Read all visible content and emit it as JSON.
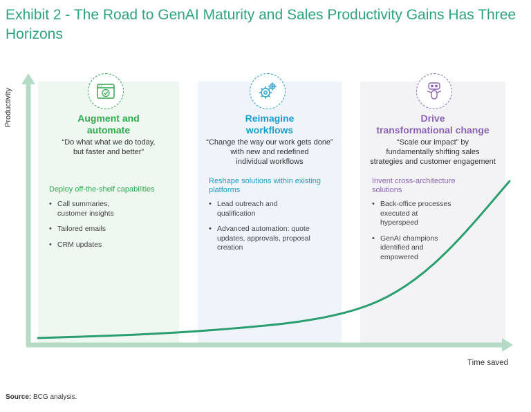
{
  "title": "Exhibit 2 - The Road to GenAI Maturity and Sales Productivity Gains Has Three Horizons",
  "axes": {
    "y_label": "Productivity",
    "x_label": "Time saved"
  },
  "horizons": [
    {
      "title_line1": "Augment and",
      "title_line2": "automate",
      "quote_line1": "“Do what what we do today,",
      "quote_line2": "but faster and better”",
      "quote_line3": "",
      "sub_line1": "Deploy off-the-shelf capabilities",
      "sub_line2": "",
      "bullets": [
        "Call summaries, customer insights",
        "Tailored emails",
        "CRM updates"
      ],
      "color": "#2fa84f",
      "icon": "browser-check-icon"
    },
    {
      "title_line1": "Reimagine",
      "title_line2": "workflows",
      "quote_line1": "“Change the way our work gets done”",
      "quote_line2": "with new and redefined",
      "quote_line3": "individual workflows",
      "sub_line1": "Reshape solutions within existing",
      "sub_line2": "platforms",
      "bullets": [
        "Lead outreach and qualification",
        "Advanced automation: quote updates, approvals, proposal creation"
      ],
      "color": "#1f9cc8",
      "icon": "gears-icon"
    },
    {
      "title_line1": "Drive",
      "title_line2": "transformational change",
      "quote_line1": "“Scale our impact” by",
      "quote_line2": "fundamentally shifting sales",
      "quote_line3": "strategies and customer engagement",
      "sub_line1": "Invent cross-architecture",
      "sub_line2": "solutions",
      "bullets": [
        "Back-office processes executed at hyperspeed",
        "GenAI champions identified and empowered"
      ],
      "color": "#8a63b3",
      "icon": "robot-icon"
    }
  ],
  "source": {
    "label": "Source:",
    "text": "BCG analysis."
  },
  "colors": {
    "title": "#2fa37a",
    "axis": "#a8d4be",
    "curve": "#2a9e6e"
  }
}
